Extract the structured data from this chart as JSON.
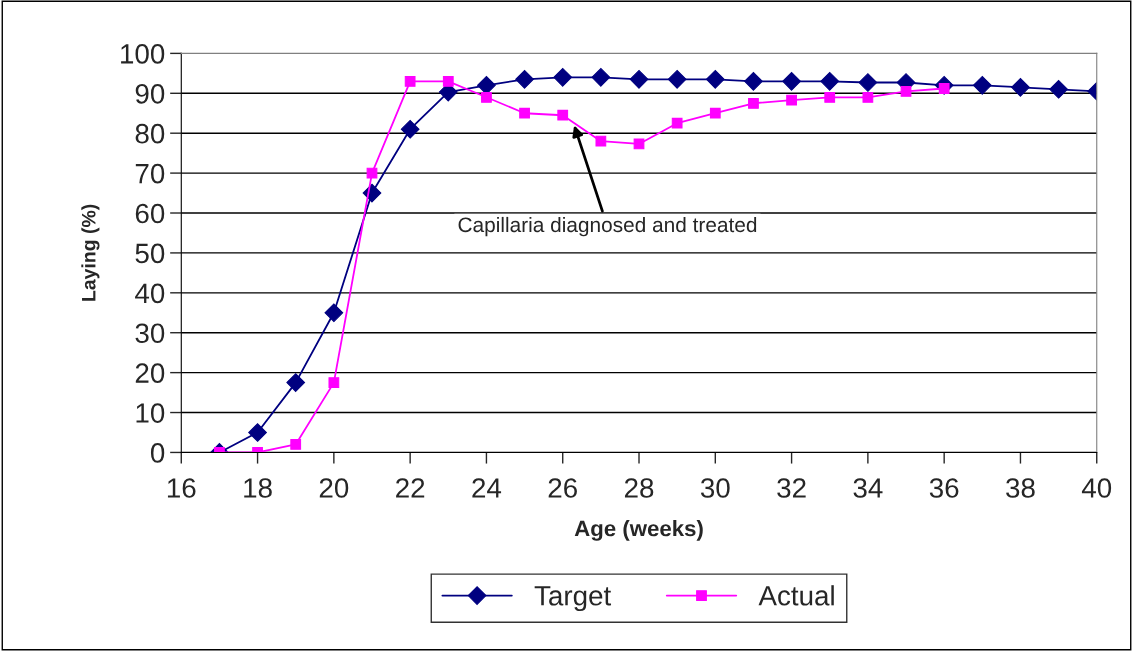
{
  "chart_data": {
    "type": "line",
    "xlabel": "Age (weeks)",
    "ylabel": "Laying (%)",
    "xlim": [
      16,
      40
    ],
    "xticks": [
      16,
      18,
      20,
      22,
      24,
      26,
      28,
      30,
      32,
      34,
      36,
      38,
      40
    ],
    "ylim": [
      0,
      100
    ],
    "yticks": [
      0,
      10,
      20,
      30,
      40,
      50,
      60,
      70,
      80,
      90,
      100
    ],
    "grid": "y",
    "legend": "bottom",
    "series": [
      {
        "name": "Target",
        "color": "#000080",
        "marker": "diamond",
        "x": [
          17,
          18,
          19,
          20,
          21,
          22,
          23,
          24,
          25,
          26,
          27,
          28,
          29,
          30,
          31,
          32,
          33,
          34,
          35,
          36,
          37,
          38,
          39,
          40
        ],
        "values": [
          0,
          5,
          17.5,
          35,
          65,
          81,
          90.3,
          92,
          93.5,
          94,
          94,
          93.5,
          93.5,
          93.5,
          93,
          93,
          93,
          92.7,
          92.7,
          92,
          92,
          91.5,
          91,
          90.5
        ]
      },
      {
        "name": "Actual",
        "color": "#ff00ff",
        "marker": "square",
        "x": [
          17,
          18,
          19,
          20,
          21,
          22,
          23,
          24,
          25,
          26,
          27,
          28,
          29,
          30,
          31,
          32,
          33,
          34,
          35,
          36
        ],
        "values": [
          0,
          0,
          2,
          17.5,
          70,
          93,
          93,
          89,
          85,
          84.5,
          78,
          77.3,
          82.5,
          85,
          87.5,
          88.3,
          89,
          89,
          90.5,
          91.2
        ]
      }
    ],
    "annotations": [
      {
        "text": "Capillaria diagnosed and treated",
        "x": 26.3,
        "y": 82
      }
    ]
  }
}
